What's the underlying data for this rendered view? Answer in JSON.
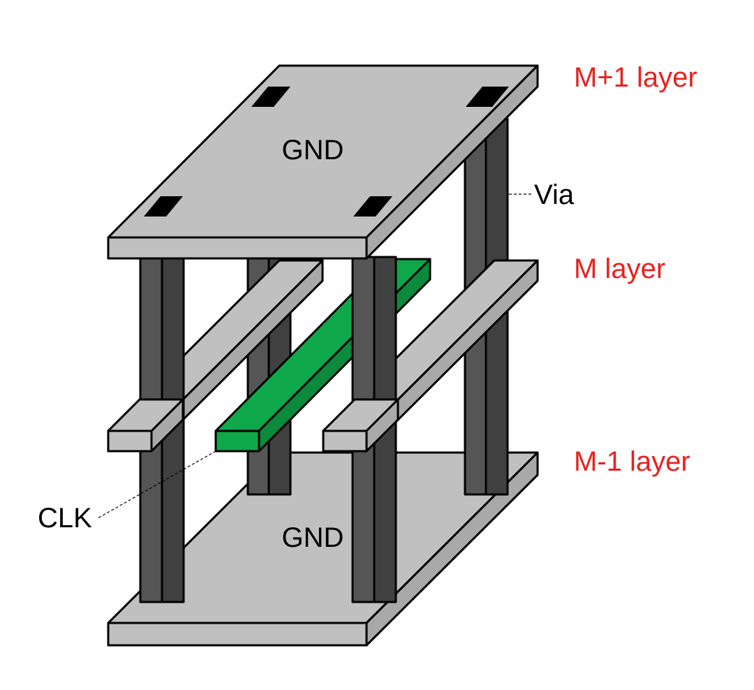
{
  "labels": {
    "gnd_top": "GND",
    "gnd_bottom": "GND",
    "via": "Via",
    "clk": "CLK"
  },
  "layers": {
    "top": "M+1 layer",
    "middle": "M layer",
    "bottom": "M-1 layer"
  },
  "colors": {
    "plane": "#c0c0c0",
    "plane_dark": "#a0a0a0",
    "via_front": "#555555",
    "via_side": "#3c3c3c",
    "clk_trace": "#0ea84a",
    "layer_label": "#e8211f",
    "via_pad": "#000000"
  }
}
